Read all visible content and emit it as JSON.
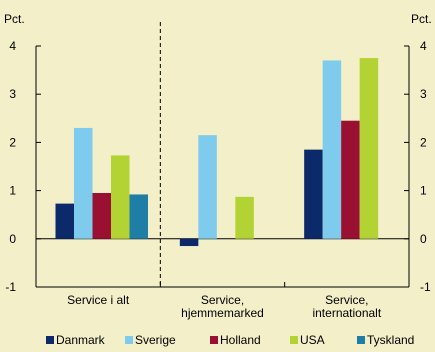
{
  "chart_data": {
    "type": "bar",
    "title": "",
    "xlabel": "",
    "y_unit_left": "Pct.",
    "y_unit_right": "Pct.",
    "ylim": [
      -1,
      4
    ],
    "yticks": [
      -1,
      0,
      1,
      2,
      3,
      4
    ],
    "grid": false,
    "legend_position": "bottom",
    "categories": [
      [
        "Service i alt"
      ],
      [
        "Service,",
        "hjemmemarked"
      ],
      [
        "Service,",
        "internationalt"
      ]
    ],
    "series": [
      {
        "name": "Danmark",
        "color": "#0c2a6a",
        "values": [
          0.73,
          -0.15,
          1.85
        ]
      },
      {
        "name": "Sverige",
        "color": "#7ecbee",
        "values": [
          2.3,
          2.15,
          3.7
        ]
      },
      {
        "name": "Holland",
        "color": "#9a1032",
        "values": [
          0.95,
          null,
          2.45
        ]
      },
      {
        "name": "USA",
        "color": "#b3d334",
        "values": [
          1.73,
          0.87,
          3.75
        ]
      },
      {
        "name": "Tyskland",
        "color": "#1e7ea6",
        "values": [
          0.92,
          null,
          null
        ]
      }
    ],
    "separator_after_category": 0
  }
}
